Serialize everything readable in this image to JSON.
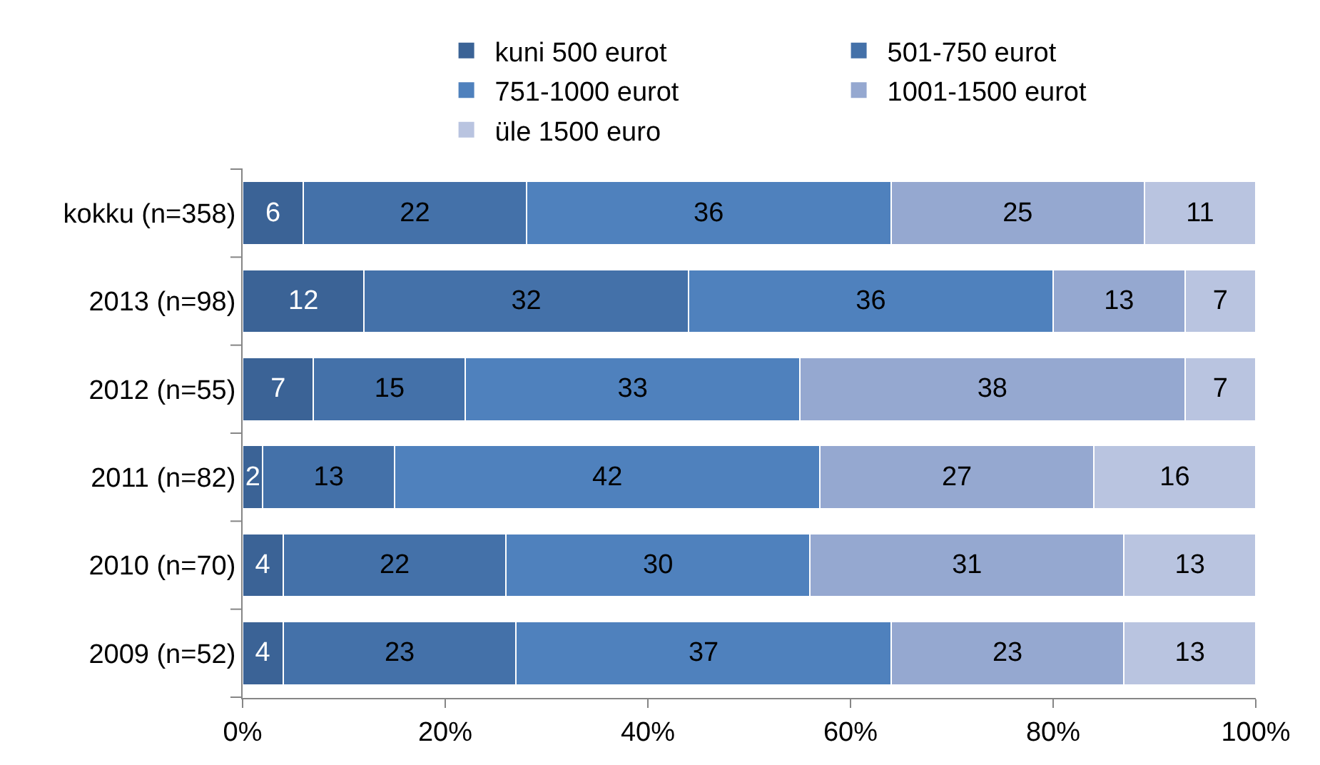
{
  "chart_data": {
    "type": "bar",
    "orientation": "horizontal",
    "stacked": true,
    "data_labels": true,
    "legend": "top",
    "categories": [
      "kokku (n=358)",
      "2013 (n=98)",
      "2012 (n=55)",
      "2011 (n=82)",
      "2010 (n=70)",
      "2009 (n=52)"
    ],
    "series": [
      {
        "name": "kuni 500 eurot",
        "color": "#3b6396",
        "values": [
          6,
          12,
          7,
          2,
          4,
          4
        ]
      },
      {
        "name": "501-750 eurot",
        "color": "#4471a9",
        "values": [
          22,
          32,
          15,
          13,
          22,
          23
        ]
      },
      {
        "name": "751-1000 eurot",
        "color": "#4f81bd",
        "values": [
          36,
          36,
          33,
          42,
          30,
          37
        ]
      },
      {
        "name": "1001-1500 eurot",
        "color": "#95a8d0",
        "values": [
          25,
          13,
          38,
          27,
          31,
          23
        ]
      },
      {
        "name": "üle 1500 euro",
        "color": "#b9c4e0",
        "values": [
          11,
          7,
          7,
          16,
          13,
          13
        ]
      }
    ],
    "xlim": [
      0,
      100
    ],
    "xticks": [
      {
        "value": 0,
        "label": "0%"
      },
      {
        "value": 20,
        "label": "20%"
      },
      {
        "value": 40,
        "label": "40%"
      },
      {
        "value": 60,
        "label": "60%"
      },
      {
        "value": 80,
        "label": "80%"
      },
      {
        "value": 100,
        "label": "100%"
      }
    ]
  }
}
